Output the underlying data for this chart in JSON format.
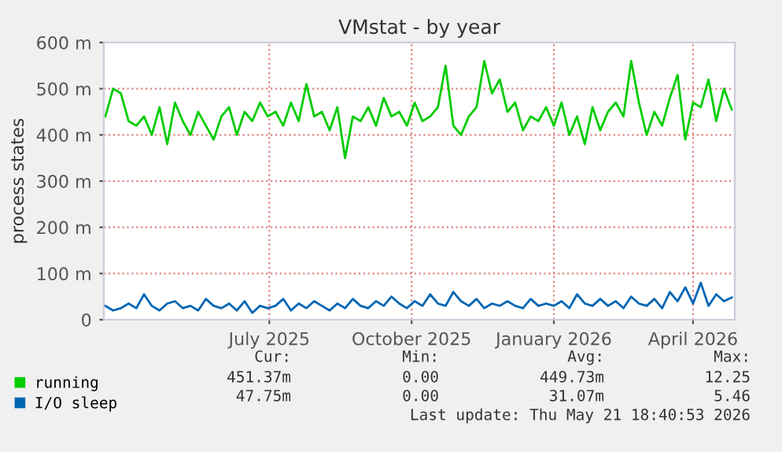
{
  "chart_data": {
    "type": "line",
    "title": "VMstat - by year",
    "ylabel": "process states",
    "x": [
      "2025-03-17",
      "2025-03-22",
      "2025-03-27",
      "2025-04-01",
      "2025-04-06",
      "2025-04-11",
      "2025-04-16",
      "2025-04-21",
      "2025-04-26",
      "2025-05-01",
      "2025-05-06",
      "2025-05-11",
      "2025-05-16",
      "2025-05-21",
      "2025-05-26",
      "2025-05-31",
      "2025-06-05",
      "2025-06-10",
      "2025-06-15",
      "2025-06-20",
      "2025-06-25",
      "2025-06-30",
      "2025-07-05",
      "2025-07-10",
      "2025-07-15",
      "2025-07-20",
      "2025-07-25",
      "2025-07-30",
      "2025-08-04",
      "2025-08-09",
      "2025-08-14",
      "2025-08-19",
      "2025-08-24",
      "2025-08-29",
      "2025-09-03",
      "2025-09-08",
      "2025-09-13",
      "2025-09-18",
      "2025-09-23",
      "2025-09-28",
      "2025-10-03",
      "2025-10-08",
      "2025-10-13",
      "2025-10-18",
      "2025-10-23",
      "2025-10-28",
      "2025-11-02",
      "2025-11-07",
      "2025-11-12",
      "2025-11-17",
      "2025-11-22",
      "2025-11-27",
      "2025-12-02",
      "2025-12-07",
      "2025-12-12",
      "2025-12-17",
      "2025-12-22",
      "2025-12-27",
      "2026-01-01",
      "2026-01-06",
      "2026-01-11",
      "2026-01-16",
      "2026-01-21",
      "2026-01-26",
      "2026-01-31",
      "2026-02-05",
      "2026-02-10",
      "2026-02-15",
      "2026-02-20",
      "2026-02-25",
      "2026-03-02",
      "2026-03-07",
      "2026-03-12",
      "2026-03-17",
      "2026-03-22",
      "2026-03-27",
      "2026-04-01",
      "2026-04-06",
      "2026-04-11",
      "2026-04-16",
      "2026-04-21",
      "2026-04-26"
    ],
    "series": [
      {
        "name": "running",
        "color": "#00cc00",
        "values": [
          440,
          500,
          490,
          430,
          420,
          440,
          400,
          460,
          380,
          470,
          430,
          400,
          450,
          420,
          390,
          440,
          460,
          400,
          450,
          430,
          470,
          440,
          450,
          420,
          470,
          430,
          510,
          440,
          450,
          410,
          460,
          350,
          440,
          430,
          460,
          420,
          480,
          440,
          450,
          420,
          470,
          430,
          440,
          460,
          550,
          420,
          400,
          440,
          460,
          560,
          490,
          520,
          450,
          470,
          410,
          440,
          430,
          460,
          420,
          470,
          400,
          440,
          380,
          460,
          410,
          450,
          470,
          440,
          560,
          470,
          400,
          450,
          420,
          480,
          530,
          390,
          470,
          460,
          520,
          430,
          500,
          455
        ]
      },
      {
        "name": "I/O sleep",
        "color": "#0066b3",
        "values": [
          30,
          20,
          25,
          35,
          25,
          55,
          30,
          20,
          35,
          40,
          25,
          30,
          20,
          45,
          30,
          25,
          35,
          20,
          40,
          15,
          30,
          25,
          30,
          45,
          20,
          35,
          25,
          40,
          30,
          20,
          35,
          25,
          45,
          30,
          25,
          40,
          30,
          50,
          35,
          25,
          40,
          30,
          55,
          35,
          30,
          60,
          40,
          30,
          45,
          25,
          35,
          30,
          40,
          30,
          25,
          45,
          30,
          35,
          30,
          40,
          25,
          55,
          35,
          30,
          45,
          30,
          40,
          25,
          50,
          35,
          30,
          45,
          25,
          60,
          40,
          70,
          35,
          80,
          30,
          55,
          40,
          48
        ]
      }
    ],
    "xlim": [
      "2025-03-16",
      "2026-04-28"
    ],
    "xticks": [
      {
        "value": "2025-07-01",
        "label": "July 2025"
      },
      {
        "value": "2025-10-01",
        "label": "October 2025"
      },
      {
        "value": "2026-01-01",
        "label": "January 2026"
      },
      {
        "value": "2026-04-01",
        "label": "April 2026"
      }
    ],
    "ylim": [
      0,
      600
    ],
    "yticks": [
      {
        "value": 0,
        "label": "0"
      },
      {
        "value": 100,
        "label": "100 m"
      },
      {
        "value": 200,
        "label": "200 m"
      },
      {
        "value": 300,
        "label": "300 m"
      },
      {
        "value": 400,
        "label": "400 m"
      },
      {
        "value": 500,
        "label": "500 m"
      },
      {
        "value": 600,
        "label": "600 m"
      }
    ],
    "grid": true,
    "legend": "bottom left",
    "line_style": "solid",
    "annotations": [
      "Cur:",
      "Min:",
      "Avg:",
      "Max:",
      "451.37m",
      "0.00",
      "449.73m",
      "12.25",
      "47.75m",
      "0.00",
      "31.07m",
      "5.46",
      "Last update: Thu May 21 18:40:53 2026"
    ]
  }
}
